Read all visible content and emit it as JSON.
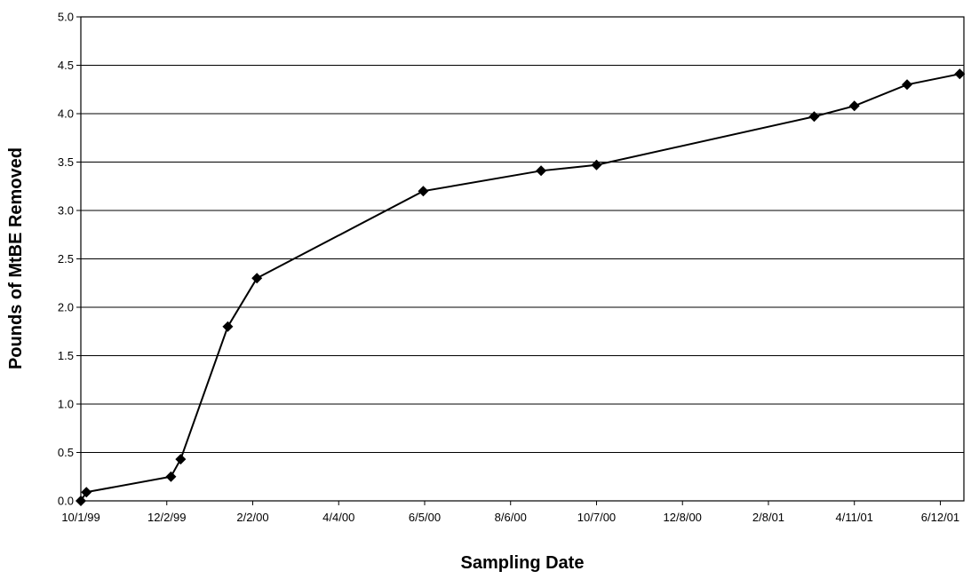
{
  "chart_data": {
    "type": "line",
    "title": "",
    "xlabel": "Sampling Date",
    "ylabel": "Pounds of MtBE Removed",
    "x_tick_labels": [
      "10/1/99",
      "12/2/99",
      "2/2/00",
      "4/4/00",
      "6/5/00",
      "8/6/00",
      "10/7/00",
      "12/8/00",
      "2/8/01",
      "4/11/01",
      "6/12/01"
    ],
    "x_ticks": [
      "1999-10-01",
      "1999-12-02",
      "2000-02-02",
      "2000-04-04",
      "2000-06-05",
      "2000-08-06",
      "2000-10-07",
      "2000-12-08",
      "2001-02-08",
      "2001-04-11",
      "2001-06-12"
    ],
    "xlim": [
      "1999-10-01",
      "2001-06-29"
    ],
    "y_tick_labels": [
      "0.0",
      "0.5",
      "1.0",
      "1.5",
      "2.0",
      "2.5",
      "3.0",
      "3.5",
      "4.0",
      "4.5",
      "5.0"
    ],
    "ylim": [
      0,
      5
    ],
    "grid": "horizontal",
    "legend": "none",
    "series": [
      {
        "marker": "diamond",
        "color": "#000000",
        "points": [
          {
            "x": "1999-10-01",
            "y": 0.0
          },
          {
            "x": "1999-10-05",
            "y": 0.09
          },
          {
            "x": "1999-12-05",
            "y": 0.25
          },
          {
            "x": "1999-12-12",
            "y": 0.43
          },
          {
            "x": "2000-01-15",
            "y": 1.8
          },
          {
            "x": "2000-02-05",
            "y": 2.3
          },
          {
            "x": "2000-06-04",
            "y": 3.2
          },
          {
            "x": "2000-08-28",
            "y": 3.41
          },
          {
            "x": "2000-10-07",
            "y": 3.47
          },
          {
            "x": "2001-03-13",
            "y": 3.97
          },
          {
            "x": "2001-04-11",
            "y": 4.08
          },
          {
            "x": "2001-05-19",
            "y": 4.3
          },
          {
            "x": "2001-06-26",
            "y": 4.41
          }
        ]
      }
    ]
  }
}
